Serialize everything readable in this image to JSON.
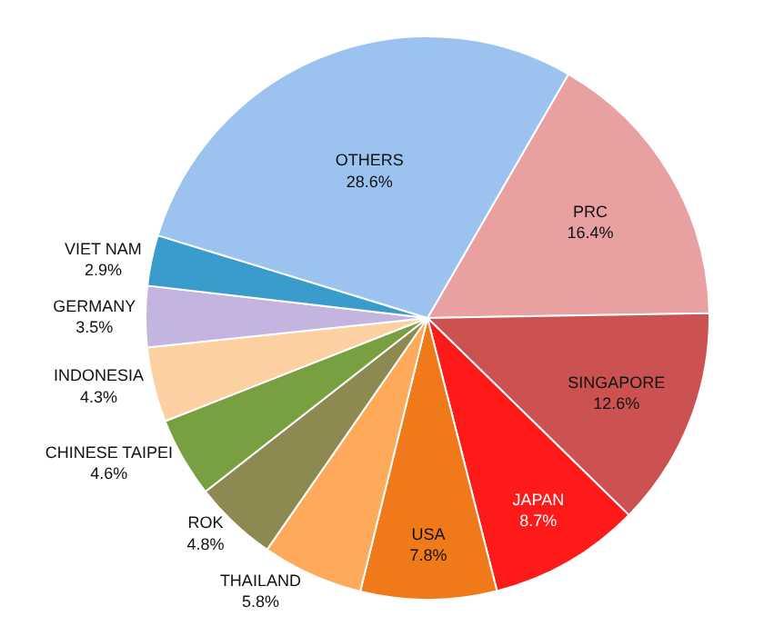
{
  "chart_data": {
    "type": "pie",
    "categories": [
      "PRC",
      "SINGAPORE",
      "JAPAN",
      "USA",
      "THAILAND",
      "ROK",
      "CHINESE TAIPEI",
      "INDONESIA",
      "GERMANY",
      "VIET NAM",
      "OTHERS"
    ],
    "values": [
      16.4,
      12.6,
      8.7,
      7.8,
      5.8,
      4.8,
      4.6,
      4.3,
      3.5,
      2.9,
      28.6
    ],
    "value_labels": [
      "16.4%",
      "12.6%",
      "8.7%",
      "7.8%",
      "5.8%",
      "4.8%",
      "4.6%",
      "4.3%",
      "3.5%",
      "2.9%",
      "28.6%"
    ],
    "colors": [
      "#e8a0a0",
      "#cc5252",
      "#ff1a1a",
      "#f07a1a",
      "#ffaa5a",
      "#8c8a50",
      "#78a040",
      "#fcd0a0",
      "#c4b4e0",
      "#3a9ccc",
      "#9cc2f0"
    ],
    "legend": false
  }
}
